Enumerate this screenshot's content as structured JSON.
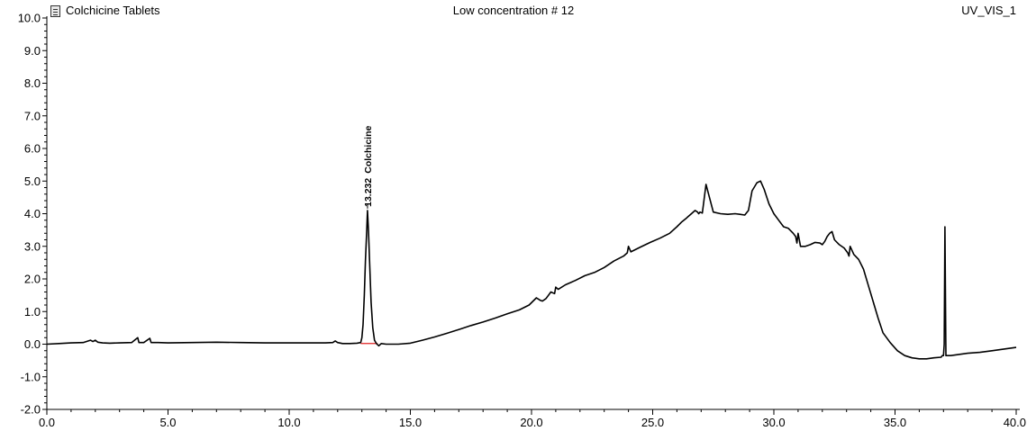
{
  "header": {
    "left_title": "Colchicine Tablets",
    "center_title": "Low concentration # 12",
    "right_title": "UV_VIS_1",
    "left_icon": "document-icon"
  },
  "chart_data": {
    "type": "line",
    "title": "Low concentration # 12",
    "xlabel": "",
    "ylabel": "",
    "xlim": [
      0,
      40
    ],
    "ylim": [
      -2,
      10
    ],
    "x_ticks": [
      "0.0",
      "5.0",
      "10.0",
      "15.0",
      "20.0",
      "25.0",
      "30.0",
      "35.0",
      "40.0"
    ],
    "y_ticks": [
      "-2.0",
      "-1.0",
      "0.0",
      "1.0",
      "2.0",
      "3.0",
      "4.0",
      "5.0",
      "6.0",
      "7.0",
      "8.0",
      "9.0",
      "10.0"
    ],
    "grid": false,
    "series": [
      {
        "name": "UV_VIS_1",
        "color": "#000000",
        "x": [
          0,
          0.5,
          1,
          1.5,
          1.8,
          1.9,
          2.0,
          2.1,
          2.3,
          2.6,
          3.0,
          3.5,
          3.75,
          3.8,
          3.85,
          4.0,
          4.25,
          4.3,
          4.35,
          4.6,
          5,
          6,
          7,
          8,
          9,
          10,
          10.5,
          11,
          11.5,
          11.8,
          11.9,
          12.0,
          12.2,
          12.5,
          12.8,
          12.95,
          13.0,
          13.05,
          13.1,
          13.15,
          13.2,
          13.232,
          13.27,
          13.32,
          13.38,
          13.45,
          13.52,
          13.6,
          13.7,
          13.8,
          14.0,
          14.5,
          15.0,
          15.5,
          16.0,
          16.5,
          17.0,
          17.5,
          18.0,
          18.5,
          19.0,
          19.5,
          19.9,
          20.2,
          20.35,
          20.45,
          20.6,
          20.8,
          20.95,
          21.0,
          21.1,
          21.4,
          21.8,
          22.2,
          22.6,
          23.0,
          23.4,
          23.8,
          23.95,
          24.0,
          24.1,
          24.5,
          24.9,
          25.3,
          25.7,
          26.0,
          26.2,
          26.4,
          26.6,
          26.75,
          26.85,
          26.9,
          26.95,
          27.05,
          27.2,
          27.5,
          27.8,
          28.1,
          28.4,
          28.6,
          28.8,
          28.95,
          29.1,
          29.3,
          29.45,
          29.6,
          29.8,
          30.0,
          30.2,
          30.4,
          30.6,
          30.8,
          30.9,
          30.95,
          31.0,
          31.1,
          31.3,
          31.5,
          31.7,
          31.9,
          32.0,
          32.1,
          32.2,
          32.3,
          32.4,
          32.5,
          32.7,
          32.9,
          33.05,
          33.1,
          33.15,
          33.3,
          33.5,
          33.7,
          33.9,
          34.1,
          34.3,
          34.5,
          34.8,
          35.1,
          35.4,
          35.7,
          36.0,
          36.3,
          36.6,
          36.9,
          36.95,
          37.0,
          37.03,
          37.06,
          37.1,
          37.3,
          37.6,
          38.0,
          38.5,
          39.0,
          39.5,
          40.0
        ],
        "y": [
          0.0,
          0.02,
          0.04,
          0.05,
          0.12,
          0.08,
          0.12,
          0.06,
          0.04,
          0.03,
          0.04,
          0.05,
          0.2,
          0.05,
          0.05,
          0.05,
          0.18,
          0.05,
          0.05,
          0.05,
          0.04,
          0.05,
          0.06,
          0.05,
          0.04,
          0.04,
          0.04,
          0.04,
          0.04,
          0.05,
          0.1,
          0.05,
          0.02,
          0.02,
          0.03,
          0.05,
          0.2,
          0.6,
          1.5,
          2.6,
          3.5,
          4.1,
          3.5,
          2.5,
          1.3,
          0.5,
          0.12,
          0.02,
          -0.05,
          0.02,
          0.0,
          0.0,
          0.03,
          0.12,
          0.22,
          0.33,
          0.45,
          0.57,
          0.68,
          0.8,
          0.93,
          1.05,
          1.2,
          1.42,
          1.35,
          1.32,
          1.4,
          1.6,
          1.55,
          1.75,
          1.68,
          1.82,
          1.95,
          2.1,
          2.2,
          2.35,
          2.55,
          2.7,
          2.8,
          3.0,
          2.83,
          2.98,
          3.12,
          3.25,
          3.4,
          3.6,
          3.75,
          3.87,
          4.0,
          4.1,
          4.05,
          4.0,
          4.05,
          4.02,
          4.9,
          4.05,
          4.0,
          3.98,
          4.0,
          3.98,
          3.96,
          4.1,
          4.7,
          4.95,
          5.0,
          4.75,
          4.3,
          4.0,
          3.8,
          3.6,
          3.55,
          3.4,
          3.3,
          3.1,
          3.4,
          3.0,
          3.0,
          3.05,
          3.12,
          3.1,
          3.05,
          3.15,
          3.3,
          3.4,
          3.45,
          3.2,
          3.05,
          2.95,
          2.8,
          2.7,
          3.0,
          2.75,
          2.6,
          2.3,
          1.8,
          1.3,
          0.8,
          0.35,
          0.05,
          -0.2,
          -0.35,
          -0.42,
          -0.45,
          -0.45,
          -0.42,
          -0.4,
          -0.35,
          -0.35,
          0.0,
          3.6,
          -0.35,
          -0.35,
          -0.32,
          -0.28,
          -0.25,
          -0.2,
          -0.15,
          -0.1
        ]
      }
    ],
    "annotations": [
      {
        "text": "13.232",
        "x": 13.232,
        "y": 4.1
      },
      {
        "text": "Colchicine",
        "x": 13.232,
        "y": 4.1
      }
    ],
    "baseline": {
      "x": [
        12.95,
        13.65
      ],
      "y": [
        0.02,
        0.02
      ],
      "color": "#e02020"
    }
  }
}
